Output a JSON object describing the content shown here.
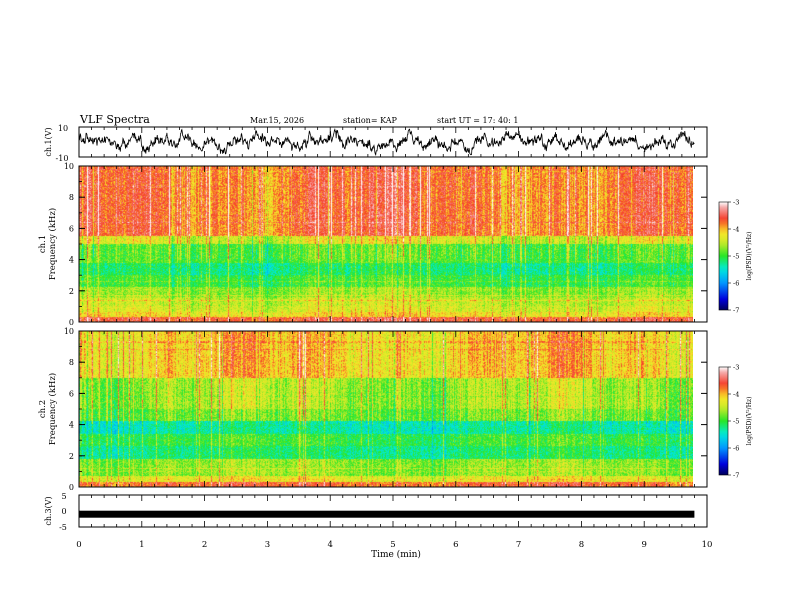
{
  "header": {
    "title": "VLF Spectra",
    "date": "Mar.15, 2026",
    "station": "station= KAP",
    "start": "start  UT =   17: 40: 1"
  },
  "chart_data": [
    {
      "type": "line",
      "id": "ch1-waveform",
      "ylabel": "ch.1(V)",
      "ylim": [
        -10,
        10
      ],
      "yticks": [
        "10",
        "-10"
      ],
      "xlim": [
        0,
        10
      ],
      "data_end": 9.8,
      "color": "#000000",
      "description_values": "dense noisy trace, roughly -5 to 5 V"
    },
    {
      "type": "heatmap",
      "id": "ch1-spectrogram",
      "ylabel_top": "ch.1",
      "ylabel": "Frequency (kHz)",
      "ylim": [
        0,
        10
      ],
      "yticks": [
        "0",
        "2",
        "4",
        "6",
        "8",
        "10"
      ],
      "xlim": [
        0,
        10
      ],
      "data_end": 9.8,
      "color_label": "log(PSD)(V²/Hz)",
      "clim": [
        -7,
        -3
      ],
      "cticks": [
        "-3",
        "-4",
        "-5",
        "-6",
        "-7"
      ],
      "band_levels": [
        {
          "f_max": 0.3,
          "level": -3.6
        },
        {
          "f_max": 0.6,
          "level": -4.2
        },
        {
          "f_max": 1.0,
          "level": -4.4
        },
        {
          "f_max": 1.6,
          "level": -4.5
        },
        {
          "f_max": 2.2,
          "level": -4.7
        },
        {
          "f_max": 3.0,
          "level": -5.0
        },
        {
          "f_max": 3.8,
          "level": -5.2
        },
        {
          "f_max": 5.0,
          "level": -4.9
        },
        {
          "f_max": 5.5,
          "level": -4.4
        },
        {
          "f_max": 10.0,
          "level": -3.75
        }
      ]
    },
    {
      "type": "heatmap",
      "id": "ch2-spectrogram",
      "ylabel_top": "ch.2",
      "ylabel": "Frequency (kHz)",
      "ylim": [
        0,
        10
      ],
      "yticks": [
        "0",
        "2",
        "4",
        "6",
        "8",
        "10"
      ],
      "xlim": [
        0,
        10
      ],
      "data_end": 9.8,
      "color_label": "log(PSD)(V²/Hz)",
      "clim": [
        -7,
        -3
      ],
      "cticks": [
        "-3",
        "-4",
        "-5",
        "-6",
        "-7"
      ],
      "band_levels": [
        {
          "f_max": 0.3,
          "level": -3.7
        },
        {
          "f_max": 0.7,
          "level": -4.3
        },
        {
          "f_max": 1.8,
          "level": -4.7
        },
        {
          "f_max": 2.6,
          "level": -5.2
        },
        {
          "f_max": 3.4,
          "level": -5.0
        },
        {
          "f_max": 4.2,
          "level": -5.35
        },
        {
          "f_max": 5.0,
          "level": -4.8
        },
        {
          "f_max": 7.0,
          "level": -4.6
        },
        {
          "f_max": 10.0,
          "level": -4.1
        }
      ]
    },
    {
      "type": "line",
      "id": "ch3-waveform",
      "ylabel": "ch.3(V)",
      "ylim": [
        -5,
        5
      ],
      "yticks": [
        "5",
        "0",
        "-5"
      ],
      "xlim": [
        0,
        10
      ],
      "data_end": 9.8,
      "level": -1,
      "color": "#000000"
    }
  ],
  "xaxis": {
    "label": "Time (min)",
    "ticks": [
      "0",
      "1",
      "2",
      "3",
      "4",
      "5",
      "6",
      "7",
      "8",
      "9",
      "10"
    ]
  }
}
